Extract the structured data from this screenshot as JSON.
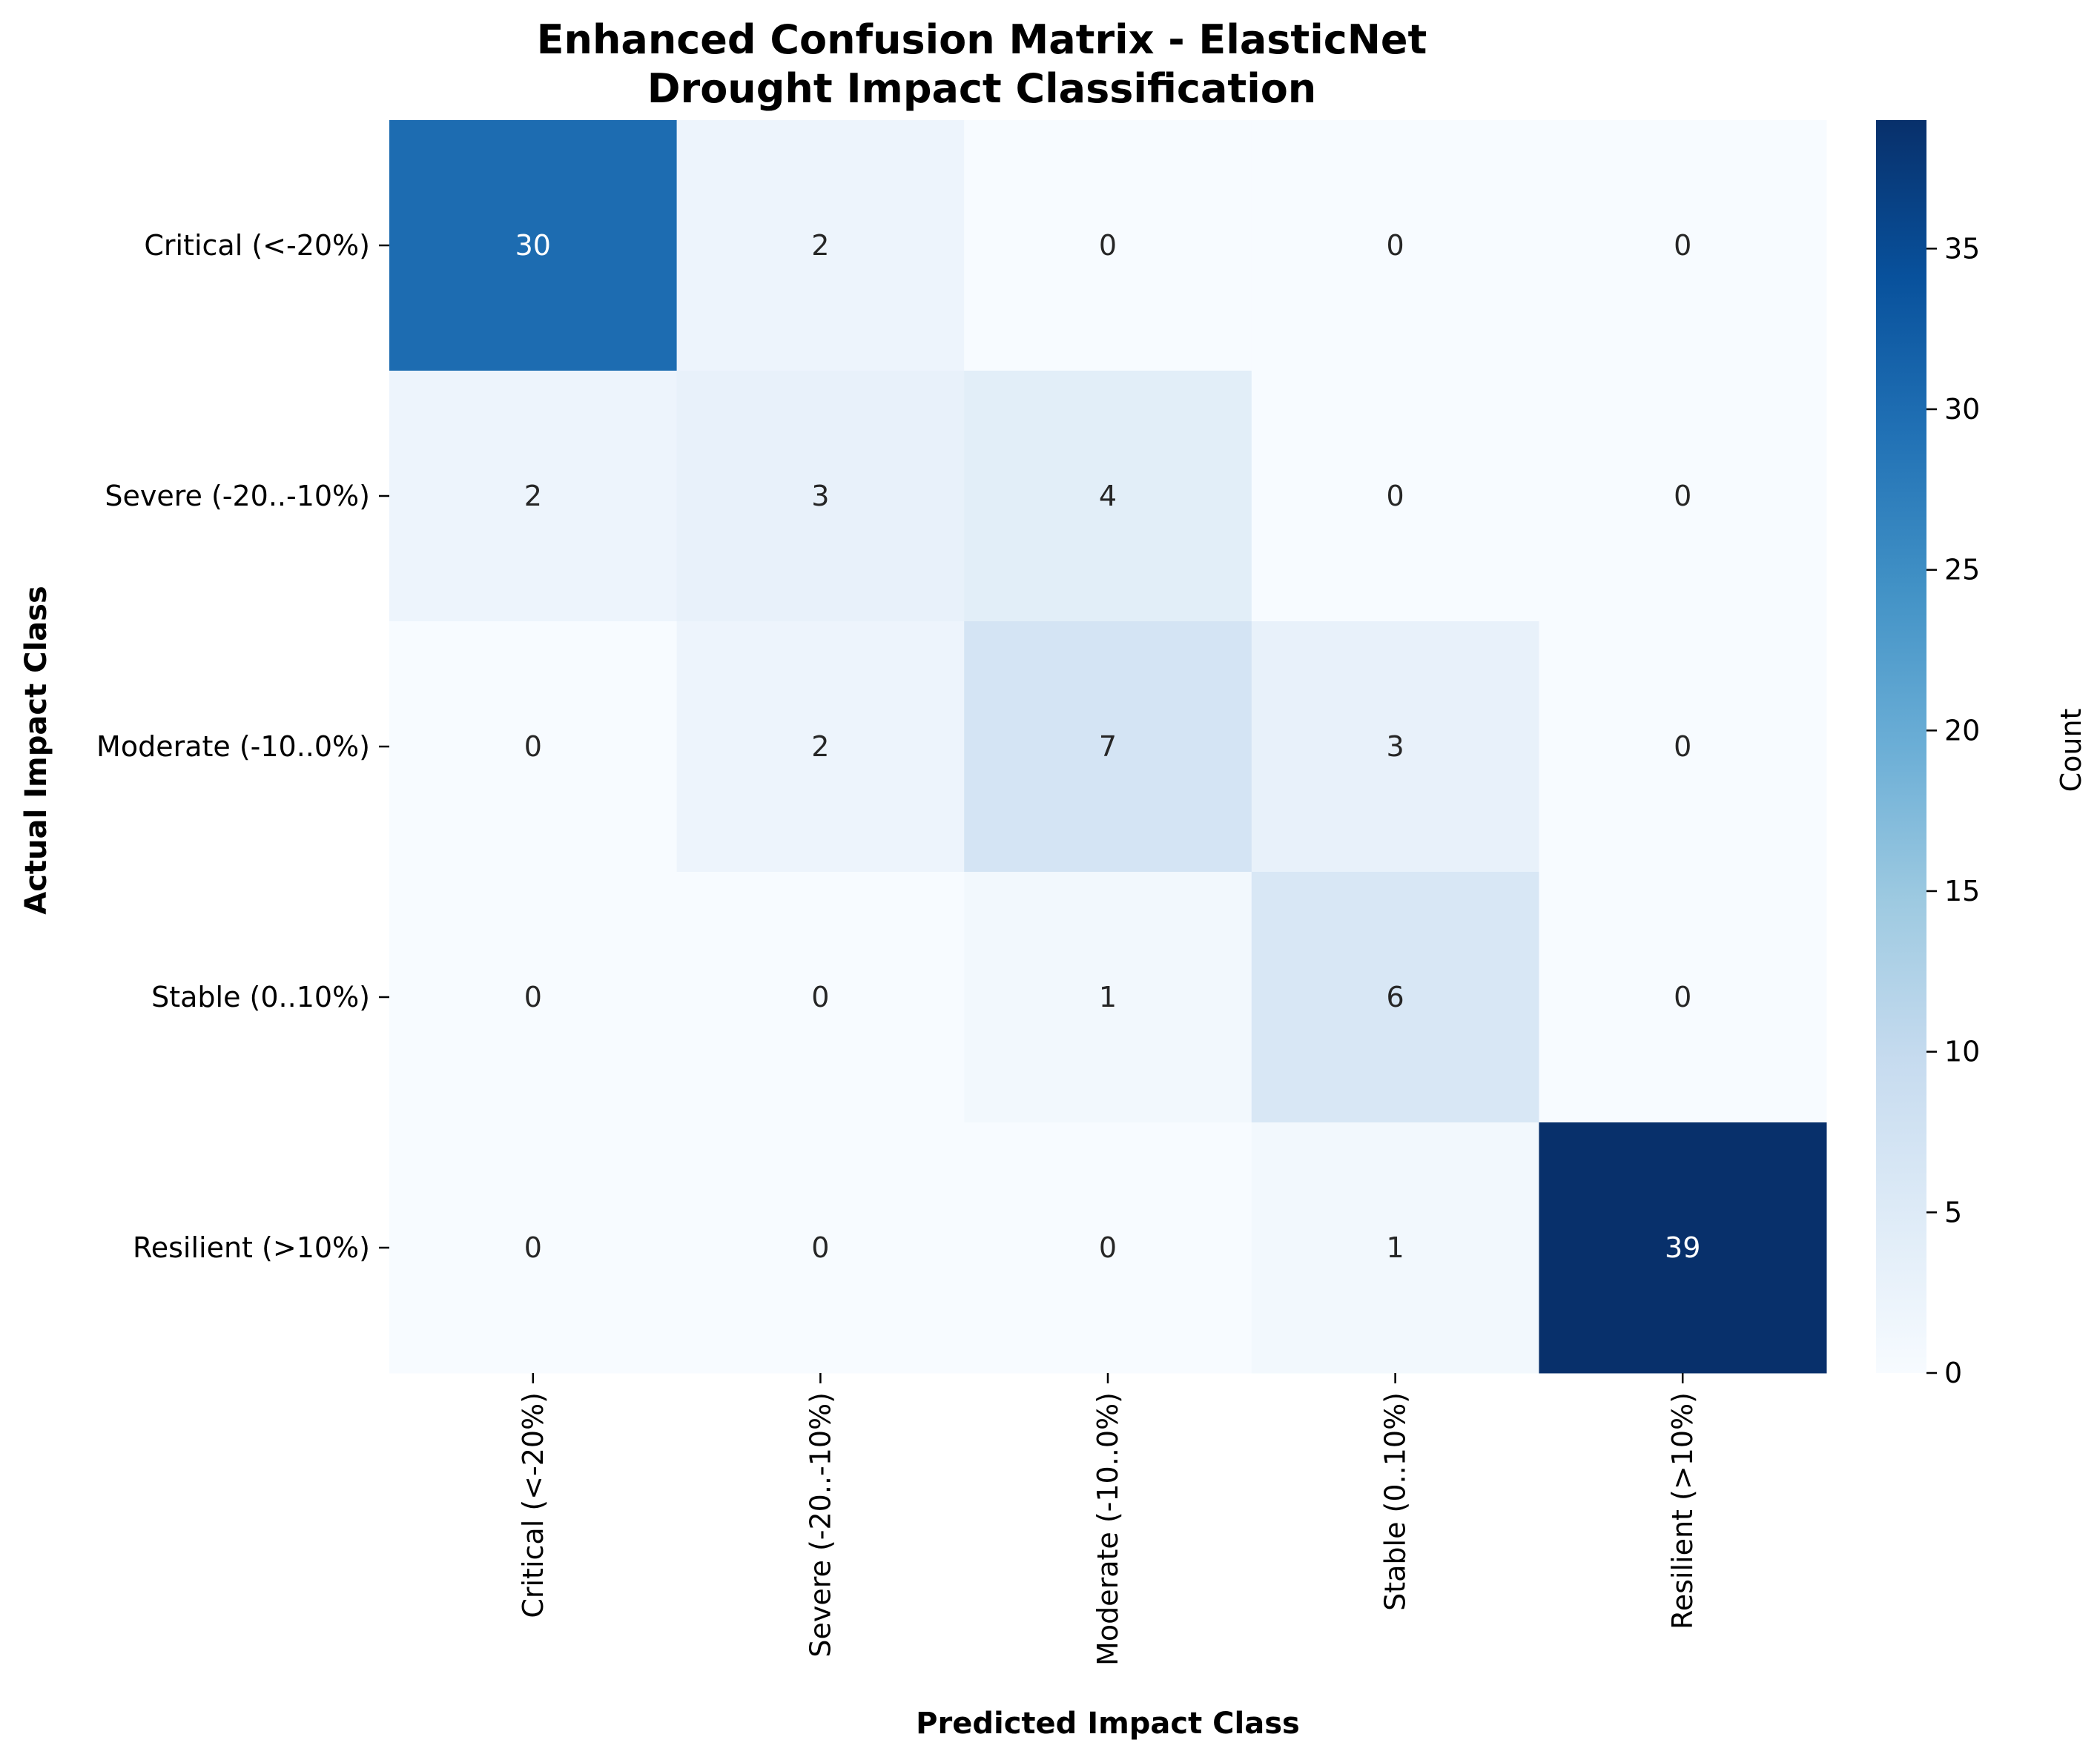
{
  "chart_data": {
    "type": "heatmap",
    "title": "Enhanced Confusion Matrix - ElasticNet",
    "subtitle": "Drought Impact Classification",
    "xlabel": "Predicted Impact Class",
    "ylabel": "Actual Impact Class",
    "x_categories": [
      "Critical (<-20%)",
      "Severe (-20..-10%)",
      "Moderate (-10..0%)",
      "Stable (0..10%)",
      "Resilient (>10%)"
    ],
    "y_categories": [
      "Critical (<-20%)",
      "Severe (-20..-10%)",
      "Moderate (-10..0%)",
      "Stable (0..10%)",
      "Resilient (>10%)"
    ],
    "values": [
      [
        30,
        2,
        0,
        0,
        0
      ],
      [
        2,
        3,
        4,
        0,
        0
      ],
      [
        0,
        2,
        7,
        3,
        0
      ],
      [
        0,
        0,
        1,
        6,
        0
      ],
      [
        0,
        0,
        0,
        1,
        39
      ]
    ],
    "colorbar": {
      "label": "Count",
      "min": 0,
      "max": 39,
      "ticks": [
        0,
        5,
        10,
        15,
        20,
        25,
        30,
        35
      ]
    },
    "colormap": "Blues",
    "grid": false
  }
}
